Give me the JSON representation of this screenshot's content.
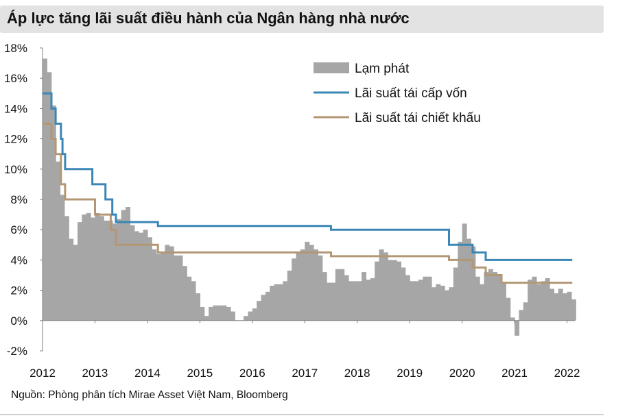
{
  "title": "Áp lực tăng lãi suất điều hành của Ngân hàng nhà nước",
  "source": "Nguồn: Phòng phân tích Mirae Asset Việt Nam, Bloomberg",
  "colors": {
    "inflation": "#a6a6a6",
    "refinancing": "#3a86b6",
    "discount": "#b39775",
    "axis": "#7f7f7f",
    "title_bg": "#e3e3e3"
  },
  "chart_data": {
    "type": "bar",
    "title": "Áp lực tăng lãi suất điều hành của Ngân hàng nhà nước",
    "xlabel": "",
    "ylabel": "",
    "ylim": [
      -2,
      18
    ],
    "y_ticks": [
      "18%",
      "16%",
      "14%",
      "12%",
      "10%",
      "8%",
      "6%",
      "4%",
      "2%",
      "0%",
      "-2%"
    ],
    "x_ticks": [
      "2012",
      "2013",
      "2014",
      "2015",
      "2016",
      "2017",
      "2018",
      "2019",
      "2020",
      "2021",
      "2022"
    ],
    "x_unit": "year (fractional)",
    "legend_position": "top-right",
    "grid": false,
    "series": [
      {
        "name": "Lạm phát",
        "kind": "bar",
        "x": [
          2012.0,
          2012.083,
          2012.167,
          2012.25,
          2012.333,
          2012.417,
          2012.5,
          2012.583,
          2012.667,
          2012.75,
          2012.833,
          2012.917,
          2013.0,
          2013.083,
          2013.167,
          2013.25,
          2013.333,
          2013.417,
          2013.5,
          2013.583,
          2013.667,
          2013.75,
          2013.833,
          2013.917,
          2014.0,
          2014.083,
          2014.167,
          2014.25,
          2014.333,
          2014.417,
          2014.5,
          2014.583,
          2014.667,
          2014.75,
          2014.833,
          2014.917,
          2015.0,
          2015.083,
          2015.167,
          2015.25,
          2015.333,
          2015.417,
          2015.5,
          2015.583,
          2015.667,
          2015.75,
          2015.833,
          2015.917,
          2016.0,
          2016.083,
          2016.167,
          2016.25,
          2016.333,
          2016.417,
          2016.5,
          2016.583,
          2016.667,
          2016.75,
          2016.833,
          2016.917,
          2017.0,
          2017.083,
          2017.167,
          2017.25,
          2017.333,
          2017.417,
          2017.5,
          2017.583,
          2017.667,
          2017.75,
          2017.833,
          2017.917,
          2018.0,
          2018.083,
          2018.167,
          2018.25,
          2018.333,
          2018.417,
          2018.5,
          2018.583,
          2018.667,
          2018.75,
          2018.833,
          2018.917,
          2019.0,
          2019.083,
          2019.167,
          2019.25,
          2019.333,
          2019.417,
          2019.5,
          2019.583,
          2019.667,
          2019.75,
          2019.833,
          2019.917,
          2020.0,
          2020.083,
          2020.167,
          2020.25,
          2020.333,
          2020.417,
          2020.5,
          2020.583,
          2020.667,
          2020.75,
          2020.833,
          2020.917,
          2021.0,
          2021.083,
          2021.167,
          2021.25,
          2021.333,
          2021.417,
          2021.5,
          2021.583,
          2021.667,
          2021.75,
          2021.833,
          2021.917,
          2022.0,
          2022.083
        ],
        "values": [
          17.3,
          16.4,
          14.2,
          10.5,
          8.3,
          6.9,
          5.4,
          5.0,
          6.5,
          7.0,
          7.1,
          6.8,
          7.1,
          6.9,
          6.6,
          6.6,
          6.4,
          6.7,
          7.3,
          7.5,
          6.3,
          5.9,
          5.8,
          6.0,
          5.5,
          4.7,
          4.4,
          4.5,
          5.0,
          4.9,
          4.3,
          4.3,
          3.6,
          2.9,
          2.6,
          1.8,
          0.9,
          0.3,
          0.9,
          1.0,
          1.0,
          1.0,
          0.9,
          0.6,
          0.0,
          0.0,
          0.3,
          0.6,
          0.8,
          1.3,
          1.7,
          1.9,
          2.3,
          2.4,
          2.4,
          2.6,
          3.3,
          4.1,
          4.5,
          4.7,
          5.2,
          5.0,
          4.7,
          4.3,
          3.2,
          2.5,
          2.5,
          3.4,
          3.4,
          3.0,
          2.6,
          2.6,
          2.6,
          3.2,
          2.7,
          2.8,
          3.9,
          4.7,
          4.5,
          4.0,
          4.0,
          3.9,
          3.5,
          3.0,
          2.6,
          2.6,
          2.7,
          2.9,
          2.9,
          2.2,
          2.4,
          2.3,
          2.0,
          2.2,
          3.5,
          5.2,
          6.4,
          5.4,
          4.9,
          2.9,
          2.4,
          3.2,
          3.4,
          3.2,
          3.0,
          2.5,
          1.5,
          0.2,
          -1.0,
          0.7,
          1.2,
          2.7,
          2.9,
          2.4,
          2.6,
          2.8,
          2.1,
          1.8,
          2.1,
          1.8,
          1.9,
          1.4
        ],
        "color": "#a6a6a6"
      },
      {
        "name": "Lãi suất tái cấp vốn",
        "kind": "step",
        "x": [
          2012.0,
          2012.17,
          2012.17,
          2012.25,
          2012.25,
          2012.35,
          2012.35,
          2012.38,
          2012.38,
          2012.43,
          2012.43,
          2012.95,
          2012.95,
          2013.2,
          2013.2,
          2013.33,
          2013.33,
          2013.4,
          2013.4,
          2014.2,
          2014.2,
          2017.5,
          2017.5,
          2019.75,
          2019.75,
          2020.2,
          2020.2,
          2020.45,
          2020.45,
          2020.75,
          2020.75,
          2022.1
        ],
        "values": [
          15,
          15,
          14,
          14,
          13,
          13,
          12,
          12,
          11,
          11,
          10,
          10,
          9,
          9,
          8,
          8,
          7,
          7,
          6.5,
          6.5,
          6.25,
          6.25,
          6,
          6,
          5,
          5,
          4.5,
          4.5,
          4,
          4,
          4,
          4
        ],
        "color": "#3a86b6"
      },
      {
        "name": "Lãi suất tái chiết khấu",
        "kind": "step",
        "x": [
          2012.0,
          2012.17,
          2012.17,
          2012.25,
          2012.25,
          2012.35,
          2012.35,
          2012.43,
          2012.43,
          2013.0,
          2013.0,
          2013.3,
          2013.3,
          2013.4,
          2013.4,
          2014.2,
          2014.2,
          2017.5,
          2017.5,
          2019.75,
          2019.75,
          2020.2,
          2020.2,
          2020.45,
          2020.45,
          2020.75,
          2020.75,
          2022.1
        ],
        "values": [
          13,
          13,
          12,
          12,
          11,
          11,
          9,
          9,
          8,
          8,
          7,
          7,
          6,
          6,
          5,
          5,
          4.5,
          4.5,
          4.25,
          4.25,
          4,
          4,
          3.5,
          3.5,
          3,
          3,
          2.5,
          2.5
        ],
        "color": "#b39775"
      }
    ]
  }
}
